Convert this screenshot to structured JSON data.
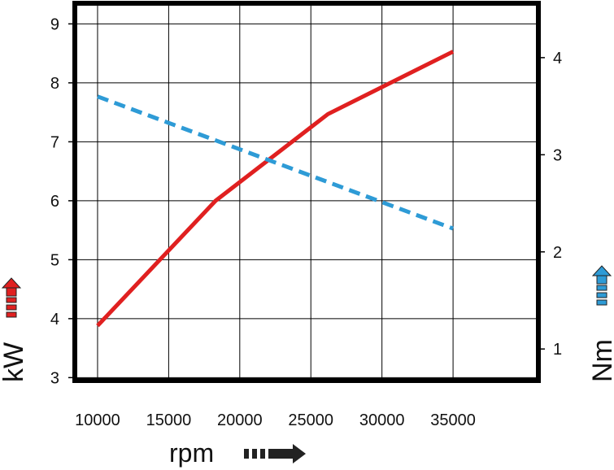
{
  "chart_data": {
    "type": "line",
    "xlabel": "rpm",
    "ylabel_left": "kW",
    "ylabel_right": "Nm",
    "x_ticks": [
      "10000",
      "15000",
      "20000",
      "25000",
      "30000",
      "35000"
    ],
    "y_left_ticks": [
      "3",
      "4",
      "5",
      "6",
      "7",
      "8",
      "9"
    ],
    "y_right_ticks": [
      "1",
      "2",
      "3",
      "4"
    ],
    "xlim": [
      8400,
      41000
    ],
    "ylim_left": [
      2.95,
      9.35
    ],
    "ylim_right": [
      0.675,
      4.56
    ],
    "grid": true,
    "series": [
      {
        "axis": "left",
        "color": "#e02020",
        "style": "solid",
        "x": [
          10000,
          18300,
          26200,
          35000
        ],
        "y": [
          3.88,
          6.0,
          7.47,
          8.53
        ]
      },
      {
        "axis": "right",
        "color": "#2e9bd6",
        "style": "dashed",
        "x": [
          10000,
          35000
        ],
        "y": [
          3.6,
          2.24
        ]
      }
    ],
    "colors": {
      "kw_arrow": "#e02020",
      "nm_arrow": "#2e9bd6",
      "rpm_arrow": "#222222"
    }
  }
}
